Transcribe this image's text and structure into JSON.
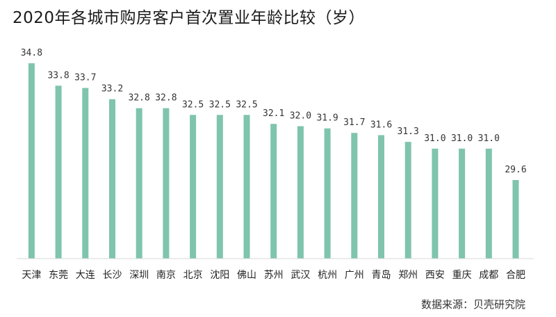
{
  "chart_data": {
    "type": "bar",
    "title": "2020年各城市购房客户首次置业年龄比较（岁）",
    "categories": [
      "天津",
      "东莞",
      "大连",
      "长沙",
      "深圳",
      "南京",
      "北京",
      "沈阳",
      "佛山",
      "苏州",
      "武汉",
      "杭州",
      "广州",
      "青岛",
      "郑州",
      "西安",
      "重庆",
      "成都",
      "合肥"
    ],
    "values": [
      34.8,
      33.8,
      33.7,
      33.2,
      32.8,
      32.8,
      32.5,
      32.5,
      32.5,
      32.1,
      32.0,
      31.9,
      31.7,
      31.6,
      31.3,
      31.0,
      31.0,
      31.0,
      29.6
    ],
    "value_labels": [
      "34.8",
      "33.8",
      "33.7",
      "33.2",
      "32.8",
      "32.8",
      "32.5",
      "32.5",
      "32.5",
      "32.1",
      "32.0",
      "31.9",
      "31.7",
      "31.6",
      "31.3",
      "31.0",
      "31.0",
      "31.0",
      "29.6"
    ],
    "xlabel": "",
    "ylabel": "",
    "ylim": [
      26.0,
      35.5
    ],
    "bar_color": "#7fc4ad",
    "axis_color": "#d9d9d9",
    "grid": false,
    "legend": "none"
  },
  "source": {
    "text": "数据来源：贝壳研究院"
  }
}
